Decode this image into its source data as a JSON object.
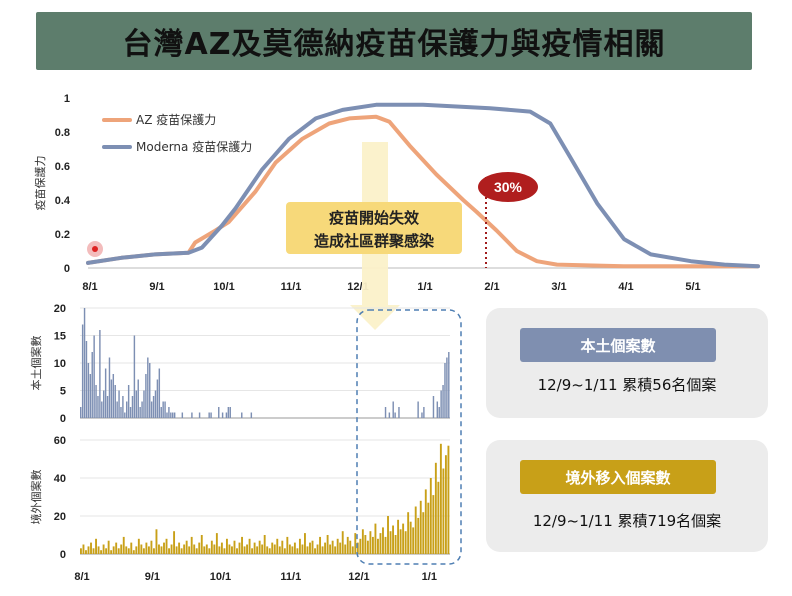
{
  "title": "台灣AZ及莫德納疫苗保護力與疫情相關",
  "chart_data": [
    {
      "type": "line",
      "ylabel": "疫苗保護力",
      "ylim": [
        0,
        1
      ],
      "y_ticks": [
        "0",
        "0.2",
        "0.4",
        "0.6",
        "0.8",
        "1"
      ],
      "x_ticks": [
        "8/1",
        "9/1",
        "10/1",
        "11/1",
        "12/1",
        "1/1",
        "2/1",
        "3/1",
        "4/1",
        "5/1"
      ],
      "legend_placement": "top-left",
      "series": [
        {
          "name": "AZ 疫苗保護力",
          "color": "#eea47a",
          "points": [
            [
              0,
              0.03
            ],
            [
              0.5,
              0.06
            ],
            [
              1,
              0.08
            ],
            [
              1.5,
              0.09
            ],
            [
              1.6,
              0.15
            ],
            [
              1.9,
              0.22
            ],
            [
              2.1,
              0.27
            ],
            [
              2.5,
              0.45
            ],
            [
              2.8,
              0.62
            ],
            [
              3.2,
              0.76
            ],
            [
              3.6,
              0.85
            ],
            [
              3.9,
              0.88
            ],
            [
              4.3,
              0.89
            ],
            [
              4.5,
              0.86
            ],
            [
              4.8,
              0.72
            ],
            [
              5.2,
              0.55
            ],
            [
              5.6,
              0.4
            ],
            [
              5.8,
              0.33
            ],
            [
              6.1,
              0.22
            ],
            [
              6.4,
              0.1
            ],
            [
              6.7,
              0.04
            ],
            [
              7,
              0.02
            ],
            [
              8,
              0.01
            ],
            [
              10,
              0.01
            ]
          ]
        },
        {
          "name": "Moderna 疫苗保護力",
          "color": "#7d8fb3",
          "points": [
            [
              0,
              0.03
            ],
            [
              0.5,
              0.06
            ],
            [
              1,
              0.08
            ],
            [
              1.5,
              0.09
            ],
            [
              1.7,
              0.12
            ],
            [
              2,
              0.25
            ],
            [
              2.2,
              0.35
            ],
            [
              2.6,
              0.58
            ],
            [
              3,
              0.76
            ],
            [
              3.4,
              0.88
            ],
            [
              3.8,
              0.93
            ],
            [
              4.3,
              0.96
            ],
            [
              5,
              0.96
            ],
            [
              5.5,
              0.95
            ],
            [
              6,
              0.94
            ],
            [
              6.6,
              0.92
            ],
            [
              6.9,
              0.85
            ],
            [
              7.2,
              0.65
            ],
            [
              7.6,
              0.38
            ],
            [
              8,
              0.17
            ],
            [
              8.4,
              0.08
            ],
            [
              9,
              0.04
            ],
            [
              9.5,
              0.02
            ],
            [
              10,
              0.01
            ]
          ]
        }
      ],
      "annotations": {
        "callout_line1": "疫苗開始失效",
        "callout_line2": "造成社區群聚感染",
        "badge": "30%"
      }
    },
    {
      "type": "bar",
      "ylabel": "本土個案數",
      "ylim": [
        0,
        20
      ],
      "y_ticks": [
        "0",
        "5",
        "10",
        "15",
        "20"
      ],
      "color": "#7d8fb3",
      "values": [
        2,
        17,
        20,
        14,
        10,
        8,
        12,
        15,
        6,
        4,
        16,
        3,
        5,
        9,
        4,
        11,
        7,
        8,
        6,
        3,
        5,
        2,
        4,
        1,
        3,
        6,
        2,
        4,
        15,
        5,
        7,
        2,
        3,
        5,
        8,
        11,
        10,
        3,
        4,
        5,
        7,
        9,
        2,
        3,
        3,
        1,
        2,
        1,
        1,
        1,
        0,
        0,
        0,
        1,
        0,
        0,
        0,
        0,
        1,
        0,
        0,
        0,
        1,
        0,
        0,
        0,
        0,
        1,
        1,
        0,
        0,
        0,
        2,
        0,
        1,
        0,
        1,
        2,
        2,
        0,
        0,
        0,
        0,
        0,
        1,
        0,
        0,
        0,
        0,
        1,
        0,
        0,
        0,
        0,
        0,
        0,
        0,
        0,
        0,
        0,
        0,
        0,
        0,
        0,
        0,
        0,
        0,
        0,
        0,
        0,
        0,
        0,
        0,
        0,
        0,
        0,
        0,
        0,
        0,
        0,
        0,
        0,
        0,
        0,
        0,
        0,
        0,
        0,
        0,
        0,
        0,
        0,
        0,
        0,
        0,
        0,
        0,
        0,
        0,
        0,
        0,
        0,
        0,
        0,
        0,
        0,
        0,
        0,
        0,
        0,
        0,
        0,
        0,
        0,
        0,
        0,
        0,
        0,
        0,
        2,
        0,
        1,
        0,
        3,
        1,
        0,
        2,
        0,
        0,
        0,
        0,
        0,
        0,
        0,
        0,
        0,
        3,
        0,
        1,
        2,
        0,
        0,
        0,
        0,
        4,
        0,
        3,
        2,
        5,
        6,
        10,
        11,
        12
      ]
    },
    {
      "type": "bar",
      "ylabel": "境外個案數",
      "ylim": [
        0,
        60
      ],
      "y_ticks": [
        "0",
        "20",
        "40",
        "60"
      ],
      "x_ticks": [
        "8/1",
        "9/1",
        "10/1",
        "11/1",
        "12/1",
        "1/1"
      ],
      "color": "#c8a018",
      "values": [
        3,
        5,
        2,
        4,
        6,
        3,
        8,
        4,
        2,
        5,
        3,
        7,
        2,
        4,
        6,
        3,
        5,
        9,
        4,
        3,
        6,
        2,
        4,
        8,
        5,
        3,
        6,
        4,
        7,
        3,
        13,
        5,
        4,
        6,
        8,
        3,
        5,
        12,
        4,
        6,
        3,
        5,
        7,
        4,
        9,
        5,
        3,
        6,
        10,
        4,
        5,
        3,
        7,
        5,
        11,
        4,
        6,
        3,
        8,
        5,
        4,
        7,
        3,
        6,
        9,
        4,
        5,
        8,
        3,
        6,
        4,
        7,
        5,
        10,
        4,
        3,
        6,
        5,
        8,
        4,
        7,
        3,
        9,
        5,
        4,
        6,
        3,
        8,
        5,
        11,
        4,
        6,
        7,
        3,
        5,
        9,
        4,
        6,
        10,
        5,
        7,
        4,
        8,
        6,
        12,
        5,
        9,
        7,
        4,
        11,
        6,
        8,
        13,
        10,
        7,
        12,
        9,
        16,
        8,
        11,
        14,
        9,
        20,
        12,
        15,
        10,
        18,
        13,
        16,
        12,
        22,
        17,
        14,
        25,
        19,
        28,
        22,
        34,
        27,
        40,
        31,
        48,
        38,
        58,
        45,
        52,
        57
      ]
    }
  ],
  "panels": {
    "local_label": "本土個案數",
    "local_text": "12/9~1/11 累積56名個案",
    "imported_label": "境外移入個案數",
    "imported_text": "12/9~1/11 累積719名個案"
  }
}
